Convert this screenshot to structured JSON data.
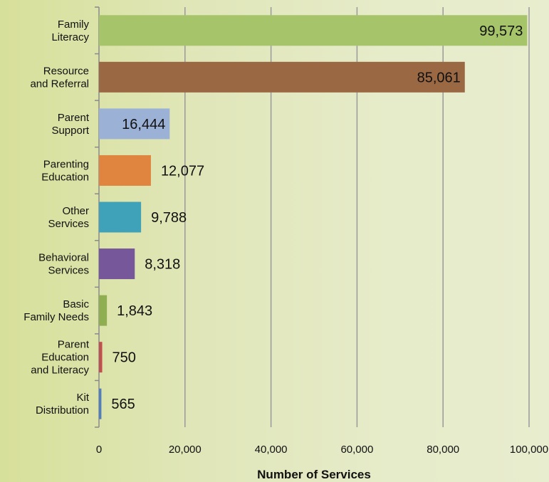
{
  "chart_data": {
    "type": "bar",
    "orientation": "horizontal",
    "categories": [
      [
        "Family",
        "Literacy"
      ],
      [
        "Resource",
        "and Referral"
      ],
      [
        "Parent",
        "Support"
      ],
      [
        "Parenting",
        "Education"
      ],
      [
        "Other",
        "Services"
      ],
      [
        "Behavioral",
        "Services"
      ],
      [
        "Basic",
        "Family Needs"
      ],
      [
        "Parent",
        "Education",
        "and Literacy"
      ],
      [
        "Kit",
        "Distribution"
      ]
    ],
    "values": [
      99573,
      85061,
      16444,
      12077,
      9788,
      8318,
      1843,
      750,
      565
    ],
    "value_labels": [
      "99,573",
      "85,061",
      "16,444",
      "12,077",
      "9,788",
      "8,318",
      "1,843",
      "750",
      "565"
    ],
    "colors": [
      "#a6c46a",
      "#9a6843",
      "#9bb2d6",
      "#e0853f",
      "#3fa2b8",
      "#76579a",
      "#8fae52",
      "#c0504d",
      "#4f7fbd"
    ],
    "xaxis": {
      "ticks": [
        0,
        20000,
        40000,
        60000,
        80000,
        100000
      ],
      "tick_labels": [
        "0",
        "20,000",
        "40,000",
        "60,000",
        "80,000",
        "100,000"
      ]
    },
    "xlim": [
      0,
      100000
    ],
    "xlabel": "Number of Services",
    "ylabel": "",
    "title": "",
    "grid": "vertical",
    "legend": "none"
  }
}
